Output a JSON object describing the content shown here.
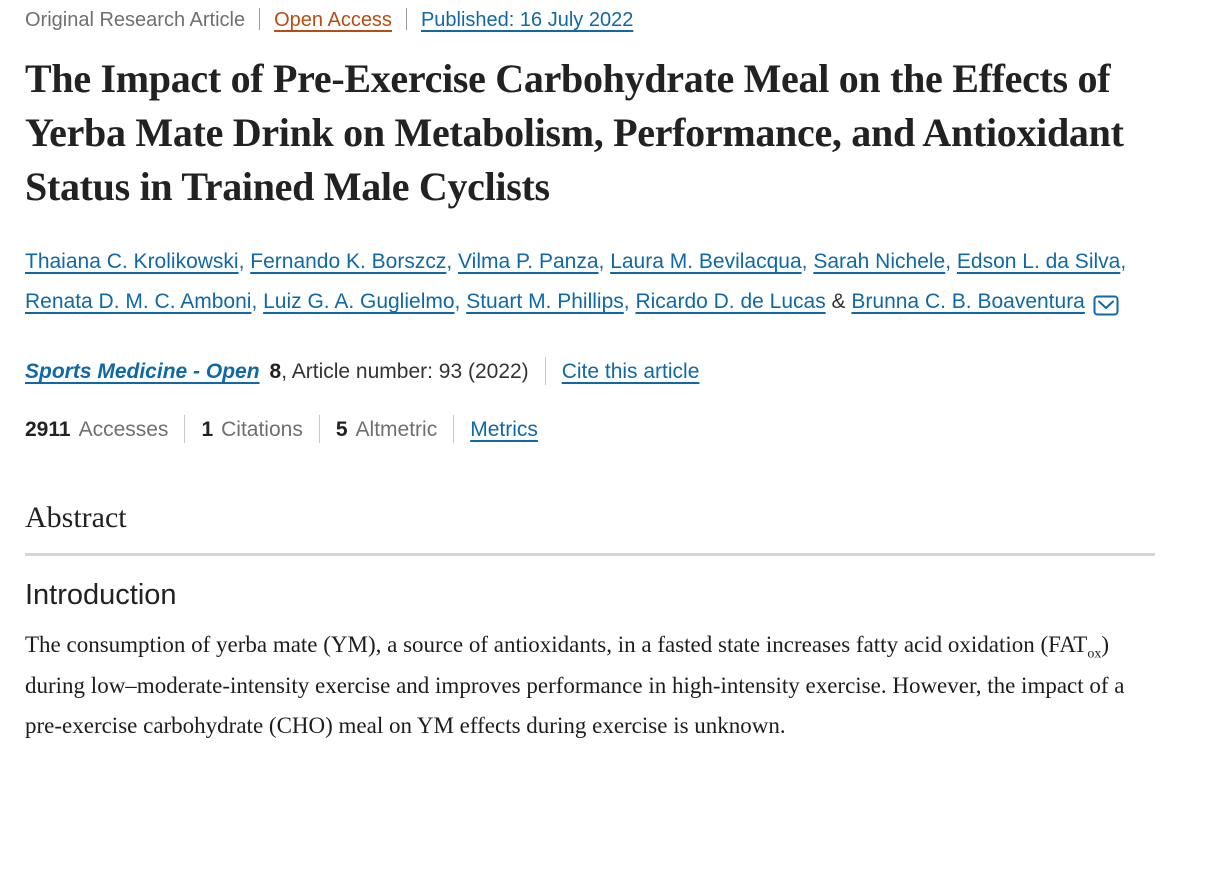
{
  "meta": {
    "article_type": "Original Research Article",
    "open_access": "Open Access",
    "published": "Published: 16 July 2022"
  },
  "title": "The Impact of Pre-Exercise Carbohydrate Meal on the Effects of Yerba Mate Drink on Metabolism, Performance, and Antioxidant Status in Trained Male Cyclists",
  "authors": {
    "names": [
      "Thaiana C. Krolikowski",
      "Fernando K. Borszcz",
      "Vilma P. Panza",
      "Laura M. Bevilacqua",
      "Sarah Nichele",
      "Edson L. da Silva",
      "Renata D. M. C. Amboni",
      "Luiz G. A. Guglielmo",
      "Stuart M. Phillips",
      "Ricardo D. de Lucas",
      "Brunna C. B. Boaventura"
    ],
    "corresponding_icon": "envelope-icon"
  },
  "journal": {
    "name": "Sports Medicine - Open",
    "volume": "8",
    "article_info": ", Article number: 93 (2022)",
    "cite_link": "Cite this article"
  },
  "metrics": {
    "items": [
      {
        "value": "2911",
        "label": "Accesses"
      },
      {
        "value": "1",
        "label": "Citations"
      },
      {
        "value": "5",
        "label": "Altmetric"
      }
    ],
    "link": "Metrics"
  },
  "abstract": {
    "heading": "Abstract",
    "section_heading": "Introduction",
    "intro_text_1": "The consumption of yerba mate (YM), a source of antioxidants, in a fasted state increases fatty acid oxidation (FAT",
    "intro_sub": "ox",
    "intro_text_2": ") during low–moderate-intensity exercise and improves performance in high-intensity exercise. However, the impact of a pre-exercise carbohydrate (CHO) meal on YM effects during exercise is unknown."
  },
  "colors": {
    "link_blue": "#1069a6",
    "open_access_orange": "#b84c12",
    "muted_gray": "#6f6f6f",
    "text_dark": "#222222",
    "divider_gray": "#d5d5d5"
  }
}
